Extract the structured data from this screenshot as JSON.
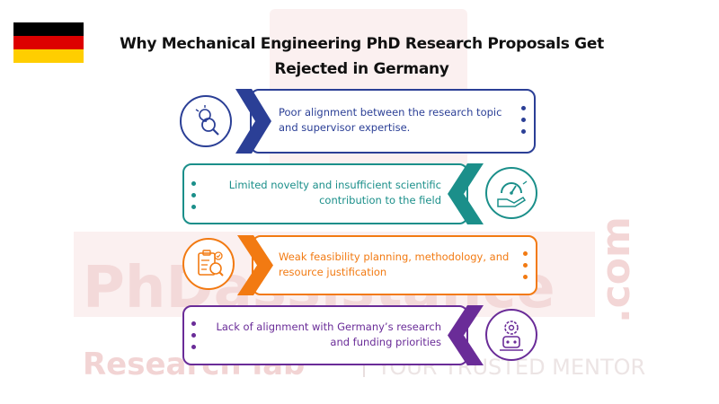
{
  "title": "Why Mechanical Engineering PhD Research Proposals Get Rejected in Germany",
  "flag_colors": [
    "#000000",
    "#dd0000",
    "#ffce00"
  ],
  "watermark": {
    "brand": "PhDassistance",
    "domain": ".com",
    "tagline_left": "Research lab",
    "tagline_right": "YOUR TRUSTED MENTOR"
  },
  "items": [
    {
      "text": "Poor alignment between the research topic and supervisor expertise.",
      "color": "#2b3f96",
      "icon": "idea-search-icon"
    },
    {
      "text": "Limited novelty and insufficient scientific contribution to the field",
      "color": "#1b8f8a",
      "icon": "hand-gauge-icon"
    },
    {
      "text": "Weak feasibility planning, methodology, and resource justification",
      "color": "#f27a12",
      "icon": "clipboard-check-icon"
    },
    {
      "text": "Lack of alignment with Germany’s research and funding priorities",
      "color": "#6a2c98",
      "icon": "gear-vision-icon"
    }
  ]
}
